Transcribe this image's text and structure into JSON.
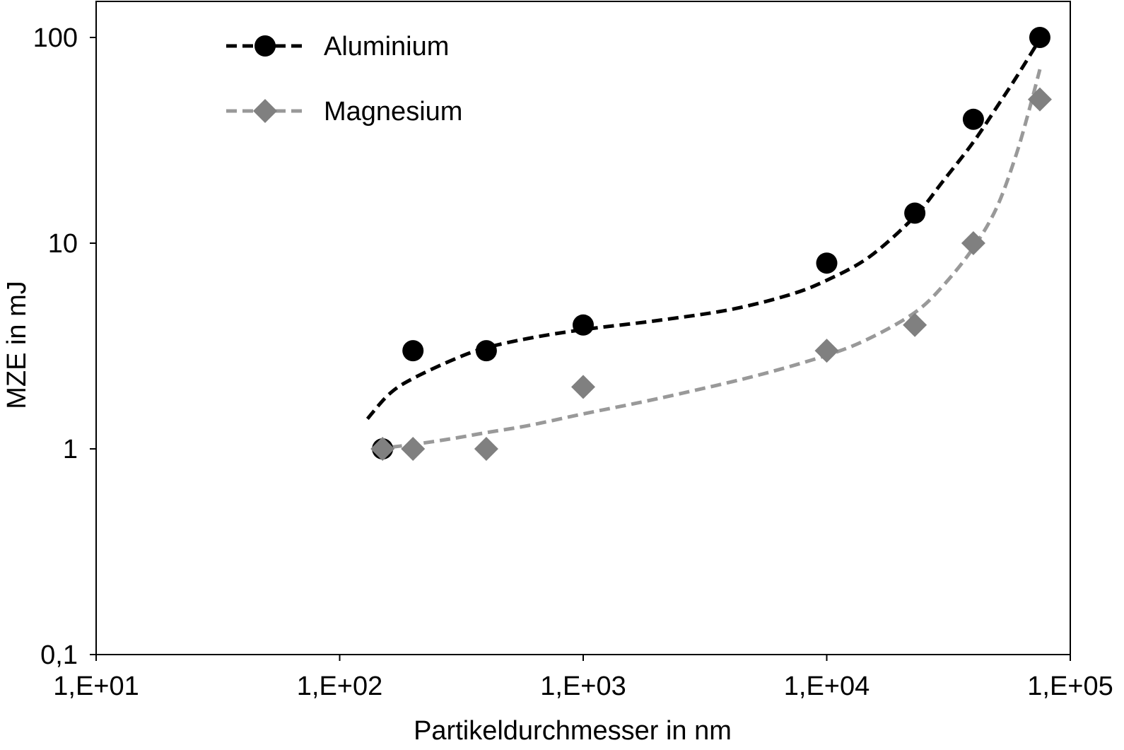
{
  "chart_data": {
    "type": "scatter",
    "xlabel": "Partikeldurchmesser in nm",
    "ylabel": "MZE in mJ",
    "x_scale": "log",
    "y_scale": "log",
    "xlim": [
      10,
      100000
    ],
    "ylim": [
      0.1,
      100
    ],
    "x_ticks": [
      {
        "value": 10,
        "label": "1,E+01"
      },
      {
        "value": 100,
        "label": "1,E+02"
      },
      {
        "value": 1000,
        "label": "1,E+03"
      },
      {
        "value": 10000,
        "label": "1,E+04"
      },
      {
        "value": 100000,
        "label": "1,E+05"
      }
    ],
    "y_ticks": [
      {
        "value": 0.1,
        "label": "0,1"
      },
      {
        "value": 1,
        "label": "1"
      },
      {
        "value": 10,
        "label": "10"
      },
      {
        "value": 100,
        "label": "100"
      }
    ],
    "grid": false,
    "legend_position": "top-left",
    "series": [
      {
        "name": "Aluminium",
        "marker": "circle",
        "color": "#000000",
        "line_style": "dashed",
        "x": [
          150,
          200,
          400,
          1000,
          10000,
          23000,
          40000,
          75000
        ],
        "y": [
          1,
          3,
          3,
          4,
          8,
          14,
          40,
          100
        ],
        "trend": {
          "x": [
            130,
            160,
            200,
            300,
            400,
            600,
            1000,
            2000,
            4000,
            7000,
            10000,
            15000,
            23000,
            30000,
            40000,
            50000,
            60000,
            75000
          ],
          "y": [
            1.4,
            1.85,
            2.2,
            2.75,
            3.1,
            3.45,
            3.8,
            4.2,
            4.75,
            5.6,
            6.6,
            8.6,
            13.5,
            20,
            31,
            46,
            64,
            98
          ]
        }
      },
      {
        "name": "Magnesium",
        "marker": "diamond",
        "color": "#808080",
        "line_style": "dashed",
        "x": [
          150,
          200,
          400,
          1000,
          10000,
          23000,
          40000,
          75000
        ],
        "y": [
          1,
          1,
          1,
          2,
          3,
          4,
          10,
          50
        ],
        "trend": {
          "x": [
            140,
            200,
            300,
            400,
            600,
            1000,
            2000,
            5000,
            10000,
            15000,
            23000,
            30000,
            40000,
            50000,
            60000,
            68000,
            75000
          ],
          "y": [
            1.0,
            1.05,
            1.13,
            1.2,
            1.3,
            1.48,
            1.75,
            2.25,
            2.85,
            3.45,
            4.6,
            6.2,
            9.5,
            15,
            27,
            45,
            70
          ]
        }
      }
    ]
  }
}
